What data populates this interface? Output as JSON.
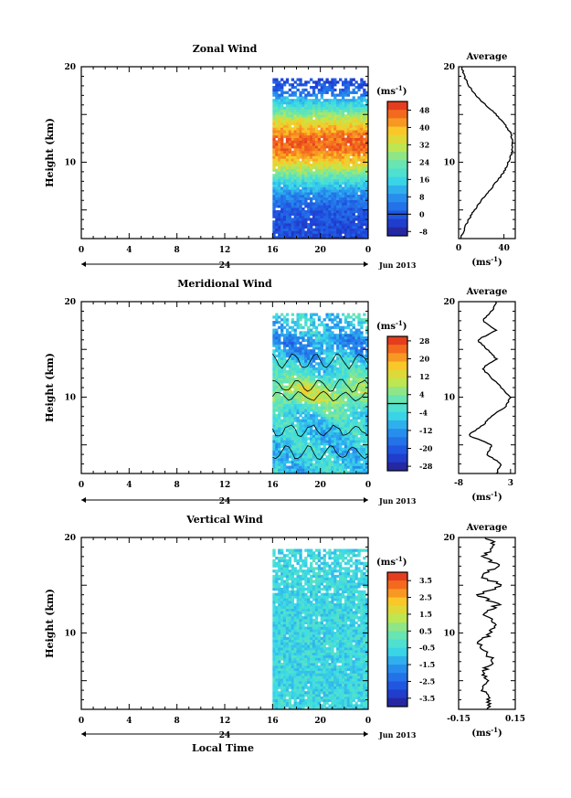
{
  "chart_data": [
    {
      "type": "heatmap",
      "title": "Zonal Wind",
      "ylabel": "Height (km)",
      "unit_label": "(ms",
      "unit_exp": "-1",
      "unit_close": ")",
      "ylim": [
        2,
        20
      ],
      "y_ticks": [
        "20",
        "10"
      ],
      "x_tick_labels": [
        "0",
        "4",
        "8",
        "12",
        "16",
        "20",
        "0"
      ],
      "day_label": "24",
      "date_label": "Jun 2013",
      "data_start_hour": 16,
      "colorbar_range": [
        -10,
        52
      ],
      "colorbar_labels": [
        "48",
        "40",
        "32",
        "24",
        "16",
        "8",
        "0",
        "-8"
      ],
      "zero_line_value": 0,
      "profile": {
        "title": "Average",
        "xlim": [
          0,
          50
        ],
        "x_ticks": [
          "0",
          "40"
        ],
        "y_ticks": [
          "20",
          "10"
        ],
        "xlabel": "(ms",
        "xlabel_exp": "-1",
        "xlabel_close": ")",
        "heights": [
          2,
          3,
          4,
          5,
          6,
          7,
          8,
          9,
          10,
          11,
          12,
          13,
          14,
          15,
          16,
          17,
          18,
          19,
          20
        ],
        "values": [
          2,
          5,
          9,
          14,
          20,
          27,
          34,
          40,
          44,
          47,
          48,
          46,
          41,
          33,
          24,
          15,
          9,
          5,
          3
        ]
      }
    },
    {
      "type": "heatmap",
      "title": "Meridional Wind",
      "ylabel": "Height (km)",
      "unit_label": "(ms",
      "unit_exp": "-1",
      "unit_close": ")",
      "ylim": [
        2,
        20
      ],
      "y_ticks": [
        "20",
        "10"
      ],
      "x_tick_labels": [
        "0",
        "4",
        "8",
        "12",
        "16",
        "20",
        "0"
      ],
      "day_label": "24",
      "date_label": "Jun 2013",
      "data_start_hour": 16,
      "colorbar_range": [
        -30,
        30
      ],
      "colorbar_labels": [
        "28",
        "20",
        "12",
        "4",
        "-4",
        "-12",
        "-20",
        "-28"
      ],
      "zero_line_value": 0,
      "profile": {
        "title": "Average",
        "xlim": [
          -8,
          4
        ],
        "x_ticks": [
          "-8",
          "3"
        ],
        "y_ticks": [
          "20",
          "10"
        ],
        "xlabel": "(ms",
        "xlabel_exp": "-1",
        "xlabel_close": ")",
        "heights": [
          2,
          3,
          4,
          5,
          6,
          7,
          8,
          9,
          10,
          11,
          12,
          13,
          14,
          15,
          16,
          17,
          18,
          19,
          20
        ],
        "values": [
          0,
          1,
          -2,
          -1,
          -6,
          -3,
          -1,
          2,
          3,
          1,
          -1,
          -3,
          0,
          -2,
          -4,
          0,
          -3,
          -1,
          0
        ]
      }
    },
    {
      "type": "heatmap",
      "title": "Vertical Wind",
      "ylabel": "Height (km)",
      "unit_label": "(ms",
      "unit_exp": "-1",
      "unit_close": ")",
      "ylim": [
        2,
        20
      ],
      "y_ticks": [
        "20",
        "10"
      ],
      "x_tick_labels": [
        "0",
        "4",
        "8",
        "12",
        "16",
        "20",
        "0"
      ],
      "day_label": "24",
      "date_label": "Jun 2013",
      "data_start_hour": 16,
      "colorbar_range": [
        -4,
        4
      ],
      "colorbar_labels": [
        "3.5",
        "2.5",
        "1.5",
        "0.5",
        "-0.5",
        "-1.5",
        "-2.5",
        "-3.5"
      ],
      "zero_line_value": null,
      "profile": {
        "title": "Average",
        "xlim": [
          -0.15,
          0.15
        ],
        "x_ticks": [
          "-0.15",
          "0.15"
        ],
        "y_ticks": [
          "20",
          "10"
        ],
        "xlabel": "(ms",
        "xlabel_exp": "-1",
        "xlabel_close": ")",
        "heights": [
          2,
          3,
          4,
          5,
          6,
          7,
          8,
          9,
          10,
          11,
          12,
          13,
          14,
          15,
          16,
          17,
          18,
          19,
          20
        ],
        "values": [
          0.0,
          0.02,
          -0.03,
          0.01,
          -0.02,
          0.03,
          0.0,
          -0.04,
          0.02,
          0.05,
          -0.02,
          0.06,
          -0.05,
          0.08,
          -0.04,
          0.07,
          -0.03,
          0.05,
          0.0
        ]
      }
    }
  ],
  "xlabel": "Local Time"
}
